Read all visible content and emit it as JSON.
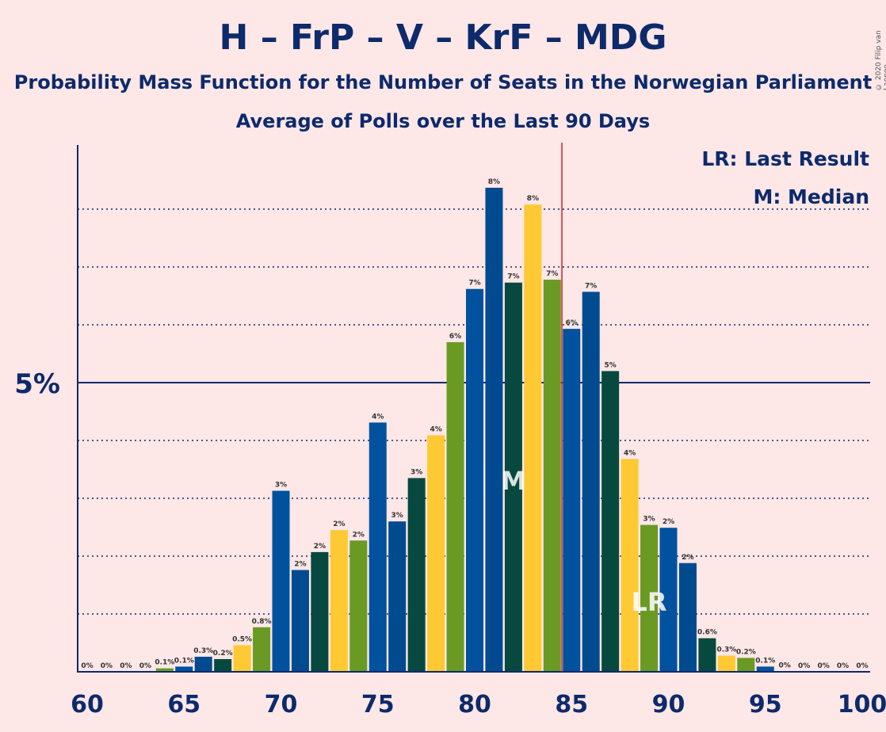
{
  "title": "H – FrP – V – KrF – MDG",
  "subtitle": "Probability Mass Function for the Number of Seats in the Norwegian Parliament",
  "subtitle2": "Average of Polls over the Last 90 Days",
  "copyright": "© 2020 Filip van Laenen",
  "legend": {
    "last_result": "LR: Last Result",
    "median": "M: Median"
  },
  "colors": {
    "background": "#fde7e7",
    "text": "#0d2a6b",
    "majority_line": "#d21f2b",
    "bars": [
      "#00529f",
      "#08493f",
      "#ffc933",
      "#6a9a24",
      "#004b8f"
    ]
  },
  "chart_data": {
    "type": "bar",
    "x": [
      60,
      61,
      62,
      63,
      64,
      65,
      66,
      67,
      68,
      69,
      70,
      71,
      72,
      73,
      74,
      75,
      76,
      77,
      78,
      79,
      80,
      81,
      82,
      83,
      84,
      85,
      86,
      87,
      88,
      89,
      90,
      91,
      92,
      93,
      94,
      95,
      96,
      97,
      98,
      99,
      100
    ],
    "values": [
      0,
      0,
      0,
      0,
      0.06,
      0.09,
      0.26,
      0.22,
      0.46,
      0.77,
      3.13,
      1.76,
      2.07,
      2.45,
      2.27,
      4.31,
      2.6,
      3.35,
      4.09,
      5.7,
      6.62,
      8.37,
      6.73,
      8.08,
      6.78,
      5.93,
      6.57,
      5.2,
      3.68,
      2.54,
      2.49,
      1.88,
      0.58,
      0.28,
      0.24,
      0.09,
      0.01,
      0,
      0,
      0,
      0
    ],
    "labels": [
      "0%",
      "0%",
      "0%",
      "0%",
      "0.1%",
      "0.1%",
      "0.3%",
      "0.2%",
      "0.5%",
      "0.8%",
      "3%",
      "2%",
      "2%",
      "2%",
      "2%",
      "4%",
      "3%",
      "3%",
      "4%",
      "6%",
      "7%",
      "8%",
      "7%",
      "8%",
      "7%",
      "6%",
      "7%",
      "5%",
      "4%",
      "3%",
      "2%",
      "2%",
      "0.6%",
      "0.3%",
      "0.2%",
      "0.1%",
      "0%",
      "0%",
      "0%",
      "0%",
      "0%"
    ],
    "bar_colors": [
      "#00529f",
      "#08493f",
      "#ffc933",
      "#6a9a24",
      "#6a9a24",
      "#00529f",
      "#004b8f",
      "#08493f",
      "#ffc933",
      "#6a9a24",
      "#00529f",
      "#004b8f",
      "#08493f",
      "#ffc933",
      "#6a9a24",
      "#00529f",
      "#004b8f",
      "#08493f",
      "#ffc933",
      "#6a9a24",
      "#00529f",
      "#004b8f",
      "#08493f",
      "#ffc933",
      "#6a9a24",
      "#00529f",
      "#004b8f",
      "#08493f",
      "#ffc933",
      "#6a9a24",
      "#00529f",
      "#004b8f",
      "#08493f",
      "#ffc933",
      "#6a9a24",
      "#00529f",
      "#004b8f",
      "#08493f",
      "#ffc933",
      "#6a9a24",
      "#00529f"
    ],
    "x_ticks": [
      60,
      65,
      70,
      75,
      80,
      85,
      90,
      95,
      100
    ],
    "y_tick_label": "5%",
    "y_tick_value": 5,
    "ylim": [
      0,
      9
    ],
    "gridlines": [
      1,
      2,
      3,
      4,
      6,
      7,
      8
    ],
    "majority_seat": 84.5,
    "median_seat": 82,
    "median_label": "M",
    "last_result_seat": 89,
    "last_result_label": "LR"
  }
}
